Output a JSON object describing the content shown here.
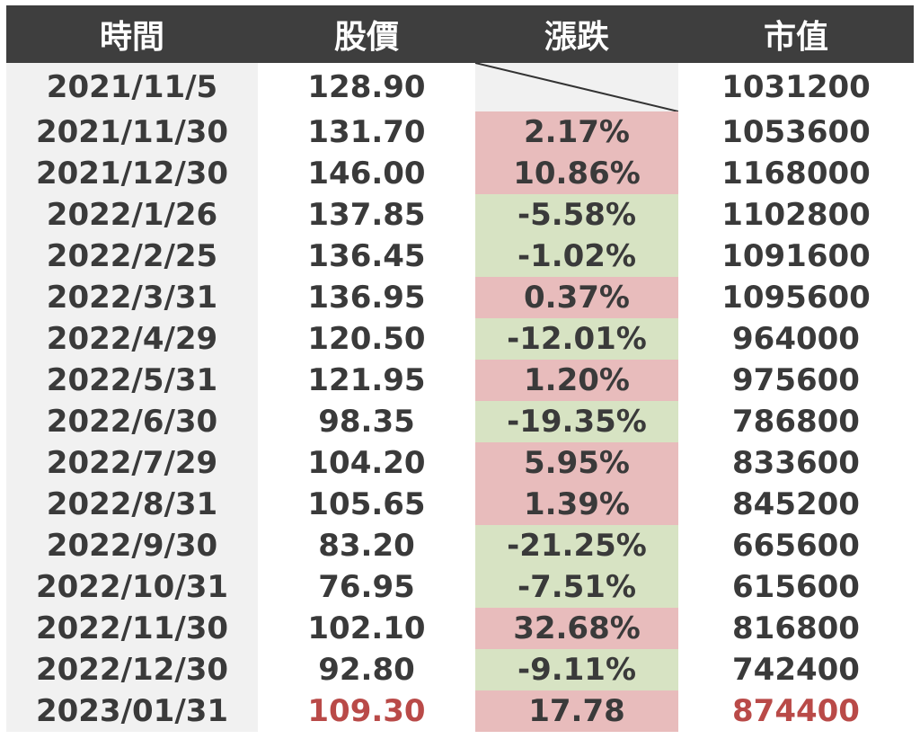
{
  "headers": [
    "時間",
    "股價",
    "漲跌",
    "市值"
  ],
  "rows": [
    {
      "date": "2021/11/5",
      "price": "128.90",
      "change": "",
      "dir": "none",
      "cap": "1031200"
    },
    {
      "date": "2021/11/30",
      "price": "131.70",
      "change": "2.17%",
      "dir": "up",
      "cap": "1053600"
    },
    {
      "date": "2021/12/30",
      "price": "146.00",
      "change": "10.86%",
      "dir": "up",
      "cap": "1168000"
    },
    {
      "date": "2022/1/26",
      "price": "137.85",
      "change": "-5.58%",
      "dir": "down",
      "cap": "1102800"
    },
    {
      "date": "2022/2/25",
      "price": "136.45",
      "change": "-1.02%",
      "dir": "down",
      "cap": "1091600"
    },
    {
      "date": "2022/3/31",
      "price": "136.95",
      "change": "0.37%",
      "dir": "up",
      "cap": "1095600"
    },
    {
      "date": "2022/4/29",
      "price": "120.50",
      "change": "-12.01%",
      "dir": "down",
      "cap": "964000"
    },
    {
      "date": "2022/5/31",
      "price": "121.95",
      "change": "1.20%",
      "dir": "up",
      "cap": "975600"
    },
    {
      "date": "2022/6/30",
      "price": "98.35",
      "change": "-19.35%",
      "dir": "down",
      "cap": "786800"
    },
    {
      "date": "2022/7/29",
      "price": "104.20",
      "change": "5.95%",
      "dir": "up",
      "cap": "833600"
    },
    {
      "date": "2022/8/31",
      "price": "105.65",
      "change": "1.39%",
      "dir": "up",
      "cap": "845200"
    },
    {
      "date": "2022/9/30",
      "price": "83.20",
      "change": "-21.25%",
      "dir": "down",
      "cap": "665600"
    },
    {
      "date": "2022/10/31",
      "price": "76.95",
      "change": "-7.51%",
      "dir": "down",
      "cap": "615600"
    },
    {
      "date": "2022/11/30",
      "price": "102.10",
      "change": "32.68%",
      "dir": "up",
      "cap": "816800"
    },
    {
      "date": "2022/12/30",
      "price": "92.80",
      "change": "-9.11%",
      "dir": "down",
      "cap": "742400"
    },
    {
      "date": "2023/01/31",
      "price": "109.30",
      "change": "17.78",
      "dir": "up",
      "cap": "874400",
      "highlight": true
    }
  ],
  "colors": {
    "header_bg": "#3e3e3e",
    "header_text": "#ffffff",
    "body_text": "#3a3a3a",
    "up_bg": "#e8bcbc",
    "down_bg": "#d7e3c3",
    "date_col_bg": "#f1f1f1",
    "highlight_text": "#b94a48"
  }
}
